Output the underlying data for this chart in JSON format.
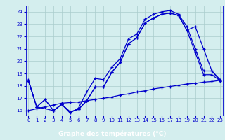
{
  "xlabel": "Graphe des températures (°C)",
  "xlim": [
    -0.3,
    23.3
  ],
  "ylim": [
    15.6,
    24.5
  ],
  "yticks": [
    16,
    17,
    18,
    19,
    20,
    21,
    22,
    23,
    24
  ],
  "xticks": [
    0,
    1,
    2,
    3,
    4,
    5,
    6,
    7,
    8,
    9,
    10,
    11,
    12,
    13,
    14,
    15,
    16,
    17,
    18,
    19,
    20,
    21,
    22,
    23
  ],
  "bg_color": "#d4eeee",
  "line_color": "#0000cc",
  "xlabel_bg": "#2222aa",
  "grid_color": "#aacccc",
  "line1_x": [
    0,
    1,
    2,
    3,
    4,
    5,
    6,
    7,
    8,
    9,
    10,
    11,
    12,
    13,
    14,
    15,
    16,
    17,
    18,
    19,
    20,
    21,
    22,
    23
  ],
  "line1_y": [
    18.5,
    16.3,
    16.9,
    16.0,
    16.5,
    15.8,
    16.2,
    17.5,
    18.6,
    18.5,
    19.5,
    20.2,
    21.8,
    22.2,
    23.4,
    23.8,
    24.0,
    24.1,
    23.8,
    22.8,
    21.0,
    19.2,
    19.2,
    18.5
  ],
  "line2_x": [
    0,
    1,
    2,
    3,
    4,
    5,
    6,
    7,
    8,
    9,
    10,
    11,
    12,
    13,
    14,
    15,
    16,
    17,
    18,
    19,
    20,
    21,
    22,
    23
  ],
  "line2_y": [
    18.4,
    16.3,
    16.9,
    16.0,
    16.5,
    15.9,
    16.1,
    16.8,
    17.9,
    17.9,
    19.1,
    19.9,
    21.4,
    21.9,
    23.1,
    23.5,
    23.8,
    23.9,
    23.7,
    22.5,
    20.7,
    18.9,
    18.9,
    18.4
  ],
  "line3_x": [
    0,
    1,
    3,
    4,
    5,
    6,
    7,
    8,
    9,
    10,
    11,
    12,
    13,
    14,
    15,
    16,
    17,
    18,
    19,
    20,
    21,
    22,
    23
  ],
  "line3_y": [
    18.4,
    16.3,
    16.0,
    16.5,
    15.9,
    16.1,
    16.8,
    17.9,
    17.9,
    19.1,
    19.9,
    21.4,
    21.9,
    23.1,
    23.5,
    23.8,
    23.9,
    23.7,
    22.5,
    22.8,
    21.0,
    19.2,
    18.4
  ],
  "line4_x": [
    0,
    1,
    2,
    3,
    4,
    5,
    6,
    7,
    8,
    9,
    10,
    11,
    12,
    13,
    14,
    15,
    16,
    17,
    18,
    19,
    20,
    21,
    22,
    23
  ],
  "line4_y": [
    16.0,
    16.15,
    16.3,
    16.45,
    16.6,
    16.65,
    16.7,
    16.8,
    16.9,
    17.0,
    17.1,
    17.25,
    17.35,
    17.5,
    17.6,
    17.75,
    17.85,
    17.95,
    18.05,
    18.15,
    18.2,
    18.3,
    18.35,
    18.45
  ]
}
